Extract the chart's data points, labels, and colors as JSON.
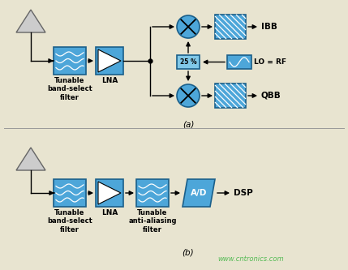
{
  "bg_color": "#e8e4d0",
  "block_color": "#4da6d9",
  "block_edge_color": "#1a5f8a",
  "text_color": "#000000",
  "watermark_color": "#55bb55",
  "watermark_text": "www.cntronics.com",
  "label_a": "(a)",
  "label_b": "(b)",
  "ibb_label": "IBB",
  "qbb_label": "QBB",
  "lna_label": "LNA",
  "dsp_label": "DSP",
  "lo_label": "LO = RF",
  "pct_label": "25 %",
  "ad_label": "A/D",
  "filter_label": "Tunable\nband-select\nfilter",
  "anti_alias_label": "Tunable\nanti-aliasing\nfilter",
  "font_size": 6.5,
  "white": "#ffffff"
}
